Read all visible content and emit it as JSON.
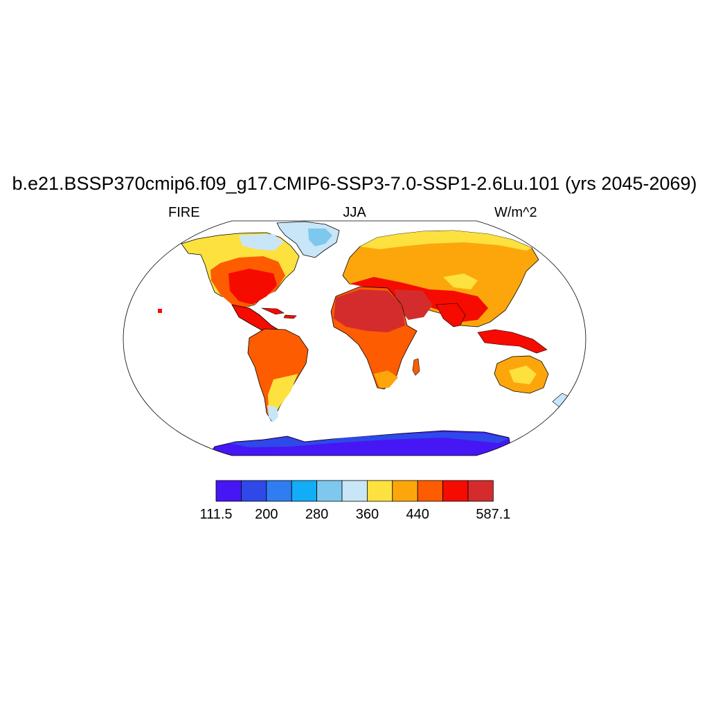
{
  "title": "b.e21.BSSP370cmip6.f09_g17.CMIP6-SSP3-7.0-SSP1-2.6Lu.101 (yrs 2045-2069)",
  "subtitle_left": "FIRE",
  "subtitle_center": "JJA",
  "subtitle_right": "W/m^2",
  "colorbar": {
    "colors": [
      "#4616f5",
      "#2e49e8",
      "#2f7df0",
      "#12acf7",
      "#7ec8ee",
      "#c8e6f7",
      "#fde13f",
      "#fda60c",
      "#fd5c00",
      "#f60b00",
      "#d42c2d"
    ],
    "labels": [
      "111.5",
      "200",
      "280",
      "360",
      "440",
      "587.1"
    ]
  },
  "chart_data": {
    "type": "heatmap",
    "variable": "FIRE",
    "season": "JJA",
    "units": "W/m^2",
    "range": [
      111.5,
      587.1
    ],
    "colorbar_tick_labels": [
      "111.5",
      "200",
      "280",
      "360",
      "440",
      "587.1"
    ]
  }
}
